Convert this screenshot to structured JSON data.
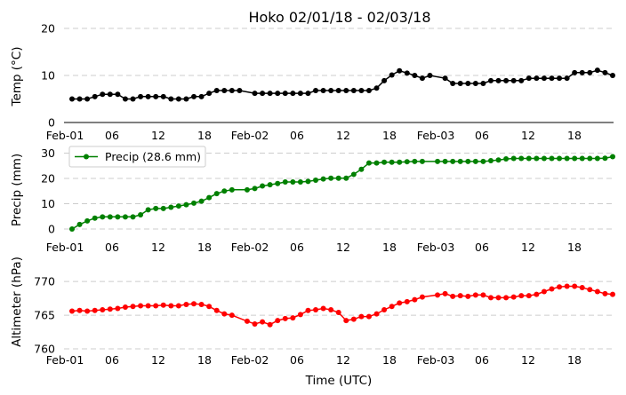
{
  "chart_data": [
    {
      "type": "line",
      "title": "Hoko 02/01/18 - 02/03/18",
      "ylabel": "Temp ($^\\circ$C)",
      "ylabel_display": "Temp (°C)",
      "xlabel": "",
      "ylim": [
        0,
        20
      ],
      "yticks": [
        "0",
        "10",
        "20"
      ],
      "grid": "dashed-horizontal",
      "color": "#000000",
      "x": [
        0,
        1,
        2,
        3,
        4,
        5,
        6,
        7,
        8,
        9,
        10,
        11,
        12,
        13,
        14,
        15,
        16,
        17,
        18,
        19,
        20,
        21,
        22,
        23,
        24,
        25,
        26,
        27,
        28,
        29,
        30,
        31,
        32,
        33,
        34,
        35,
        36,
        37,
        38,
        39,
        40,
        41,
        42,
        43,
        44,
        45,
        46,
        47,
        48,
        49,
        50,
        51,
        52,
        53,
        54,
        55,
        56,
        57,
        58,
        59,
        60,
        61,
        62,
        63,
        64,
        65,
        66,
        67,
        68,
        69,
        70,
        71
      ],
      "values": [
        5,
        5,
        5,
        5.5,
        6,
        6,
        6,
        5,
        5,
        5.5,
        5.5,
        5.5,
        5.5,
        5,
        5,
        5,
        5.5,
        5.5,
        6.2,
        6.8,
        6.8,
        6.8,
        6.8,
        null,
        6.2,
        6.2,
        6.2,
        6.2,
        6.2,
        6.2,
        6.2,
        6.2,
        6.8,
        6.8,
        6.8,
        6.8,
        6.8,
        6.8,
        6.8,
        6.8,
        7.3,
        8.9,
        10.1,
        11,
        10.5,
        10,
        9.4,
        10,
        null,
        9.4,
        8.3,
        8.3,
        8.3,
        8.3,
        8.3,
        8.9,
        8.9,
        8.9,
        8.9,
        8.9,
        9.4,
        9.4,
        9.4,
        9.4,
        9.4,
        9.4,
        10.6,
        10.6,
        10.6,
        11.1,
        10.6,
        10
      ]
    },
    {
      "type": "line",
      "ylabel": "Precip (mm)",
      "ylim": [
        0,
        30
      ],
      "yticks": [
        "0",
        "10",
        "20",
        "30"
      ],
      "grid": "dashed-horizontal",
      "color": "#008000",
      "legend": "Precip (28.6 mm)",
      "legend_position": "top-left",
      "x": [
        0,
        1,
        2,
        3,
        4,
        5,
        6,
        7,
        8,
        9,
        10,
        11,
        12,
        13,
        14,
        15,
        16,
        17,
        18,
        19,
        20,
        21,
        22,
        23,
        24,
        25,
        26,
        27,
        28,
        29,
        30,
        31,
        32,
        33,
        34,
        35,
        36,
        37,
        38,
        39,
        40,
        41,
        42,
        43,
        44,
        45,
        46,
        47,
        48,
        49,
        50,
        51,
        52,
        53,
        54,
        55,
        56,
        57,
        58,
        59,
        60,
        61,
        62,
        63,
        64,
        65,
        66,
        67,
        68,
        69,
        70,
        71
      ],
      "values": [
        0,
        1.8,
        3.2,
        4.3,
        4.8,
        4.8,
        4.8,
        4.8,
        4.8,
        5.6,
        7.6,
        8.1,
        8.1,
        8.6,
        9.1,
        9.6,
        10.2,
        11,
        12.4,
        14,
        15,
        15.5,
        null,
        15.5,
        16,
        17,
        17.5,
        18,
        18.6,
        18.6,
        18.6,
        18.8,
        19.3,
        19.8,
        20.1,
        20.1,
        20.1,
        21.6,
        23.6,
        26.1,
        26.1,
        26.4,
        26.4,
        26.4,
        26.6,
        26.7,
        26.7,
        null,
        26.7,
        26.7,
        26.7,
        26.7,
        26.7,
        26.7,
        26.7,
        27,
        27.3,
        27.7,
        27.9,
        27.9,
        27.9,
        27.9,
        27.9,
        27.9,
        27.9,
        27.9,
        27.9,
        27.9,
        27.9,
        27.9,
        28,
        28.6
      ]
    },
    {
      "type": "line",
      "ylabel": "Altimeter (hPa)",
      "xlabel": "Time (UTC)",
      "ylim": [
        760,
        772
      ],
      "yticks": [
        "760",
        "765",
        "770"
      ],
      "grid": "dashed-horizontal",
      "color": "#ff0000",
      "x": [
        0,
        1,
        2,
        3,
        4,
        5,
        6,
        7,
        8,
        9,
        10,
        11,
        12,
        13,
        14,
        15,
        16,
        17,
        18,
        19,
        20,
        21,
        22,
        23,
        24,
        25,
        26,
        27,
        28,
        29,
        30,
        31,
        32,
        33,
        34,
        35,
        36,
        37,
        38,
        39,
        40,
        41,
        42,
        43,
        44,
        45,
        46,
        47,
        48,
        49,
        50,
        51,
        52,
        53,
        54,
        55,
        56,
        57,
        58,
        59,
        60,
        61,
        62,
        63,
        64,
        65,
        66,
        67,
        68,
        69,
        70,
        71
      ],
      "values": [
        765.6,
        765.7,
        765.6,
        765.7,
        765.8,
        765.9,
        766,
        766.2,
        766.3,
        766.4,
        766.4,
        766.4,
        766.5,
        766.4,
        766.4,
        766.6,
        766.7,
        766.6,
        766.3,
        765.7,
        765.2,
        765,
        null,
        764.1,
        763.7,
        764,
        763.6,
        764.2,
        764.5,
        764.6,
        765.1,
        765.7,
        765.8,
        766,
        765.8,
        765.4,
        764.2,
        764.4,
        764.8,
        764.8,
        765.2,
        765.8,
        766.3,
        766.8,
        767,
        767.3,
        767.7,
        null,
        768,
        768.2,
        767.8,
        767.9,
        767.8,
        768,
        768,
        767.6,
        767.6,
        767.6,
        767.7,
        767.9,
        767.9,
        768.1,
        768.5,
        768.9,
        769.2,
        769.3,
        769.3,
        769.1,
        768.8,
        768.5,
        768.2,
        768.1
      ]
    }
  ],
  "x_axis": {
    "tick_labels": [
      "Feb-01",
      "06",
      "12",
      "18",
      "Feb-02",
      "06",
      "12",
      "18",
      "Feb-03",
      "06",
      "12",
      "18"
    ]
  }
}
